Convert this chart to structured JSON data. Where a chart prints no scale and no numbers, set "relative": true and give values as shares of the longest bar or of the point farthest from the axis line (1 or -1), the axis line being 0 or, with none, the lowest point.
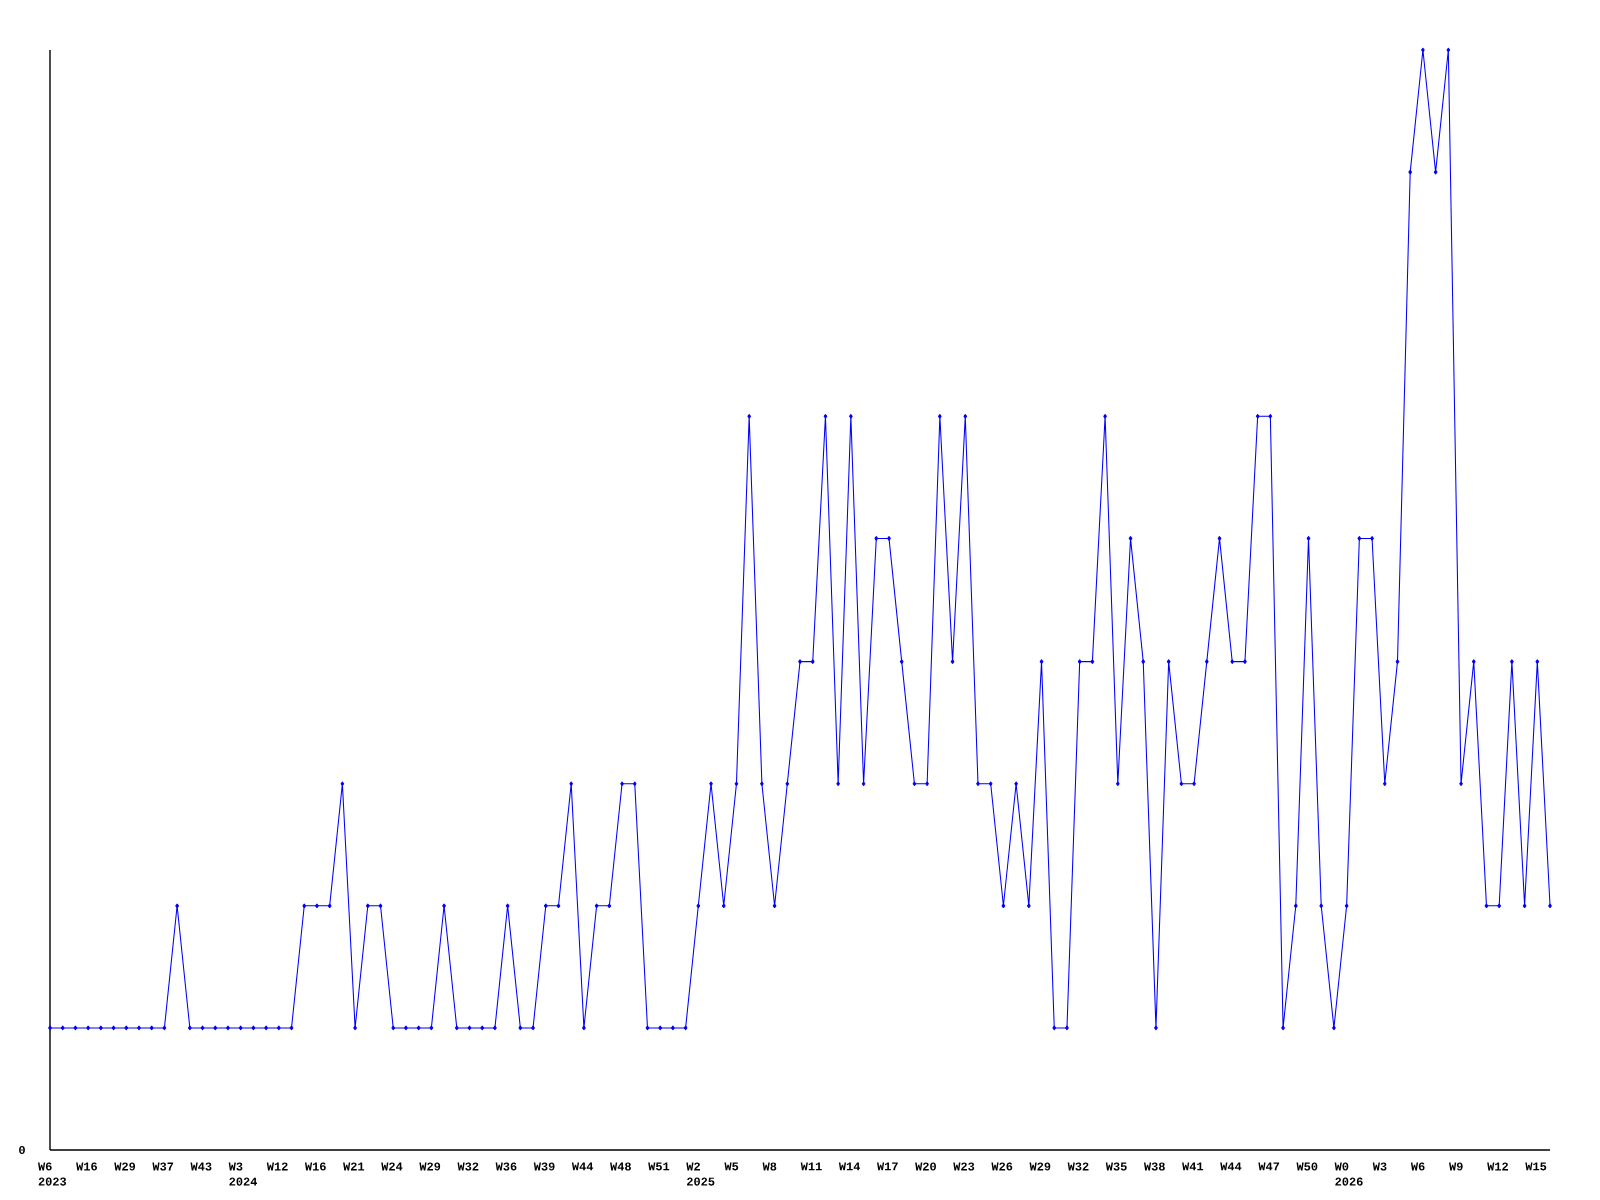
{
  "chart_data": {
    "type": "line",
    "relative": true,
    "color": "#0000ff",
    "marker": "diamond",
    "line_style": "solid",
    "categories": [
      "W6 2023",
      null,
      null,
      "W16",
      null,
      null,
      "W29",
      null,
      null,
      "W37",
      null,
      null,
      "W43",
      null,
      null,
      "W3 2024",
      null,
      null,
      "W12",
      null,
      null,
      "W16",
      null,
      null,
      "W21",
      null,
      null,
      "W24",
      null,
      null,
      "W29",
      null,
      null,
      "W32",
      null,
      null,
      "W36",
      null,
      null,
      "W39",
      null,
      null,
      "W44",
      null,
      null,
      "W48",
      null,
      null,
      "W51",
      null,
      null,
      "W2 2025",
      null,
      null,
      "W5",
      null,
      null,
      "W8",
      null,
      null,
      "W11",
      null,
      null,
      "W14",
      null,
      null,
      "W17",
      null,
      null,
      "W20",
      null,
      null,
      "W23",
      null,
      null,
      "W26",
      null,
      null,
      "W29",
      null,
      null,
      "W32",
      null,
      null,
      "W35",
      null,
      null,
      "W38",
      null,
      null,
      "W41",
      null,
      null,
      "W44",
      null,
      null,
      "W47",
      null,
      null,
      "W50",
      null,
      null,
      "W0 2026",
      null,
      null,
      "W3",
      null,
      null,
      "W6",
      null,
      null,
      "W9",
      null,
      null,
      "W12",
      null,
      null,
      "W15",
      null
    ],
    "values": [
      0.111,
      0.111,
      0.111,
      0.111,
      0.111,
      0.111,
      0.111,
      0.111,
      0.111,
      0.111,
      0.222,
      0.111,
      0.111,
      0.111,
      0.111,
      0.111,
      0.111,
      0.111,
      0.111,
      0.111,
      0.222,
      0.222,
      0.222,
      0.333,
      0.111,
      0.222,
      0.222,
      0.111,
      0.111,
      0.111,
      0.111,
      0.222,
      0.111,
      0.111,
      0.111,
      0.111,
      0.222,
      0.111,
      0.111,
      0.222,
      0.222,
      0.333,
      0.111,
      0.222,
      0.222,
      0.333,
      0.333,
      0.111,
      0.111,
      0.111,
      0.111,
      0.222,
      0.333,
      0.222,
      0.333,
      0.667,
      0.333,
      0.222,
      0.333,
      0.444,
      0.444,
      0.667,
      0.333,
      0.667,
      0.333,
      0.556,
      0.556,
      0.444,
      0.333,
      0.333,
      0.667,
      0.444,
      0.667,
      0.333,
      0.333,
      0.222,
      0.333,
      0.222,
      0.444,
      0.111,
      0.111,
      0.444,
      0.444,
      0.667,
      0.333,
      0.556,
      0.444,
      0.111,
      0.444,
      0.333,
      0.333,
      0.444,
      0.556,
      0.444,
      0.444,
      0.667,
      0.667,
      0.111,
      0.222,
      0.556,
      0.222,
      0.111,
      0.222,
      0.556,
      0.556,
      0.333,
      0.444,
      0.889,
      1,
      0.889,
      1,
      0.333,
      0.444,
      0.222,
      0.222,
      0.444,
      0.222,
      0.444,
      0.222
    ],
    "annotations": [
      "0"
    ]
  }
}
